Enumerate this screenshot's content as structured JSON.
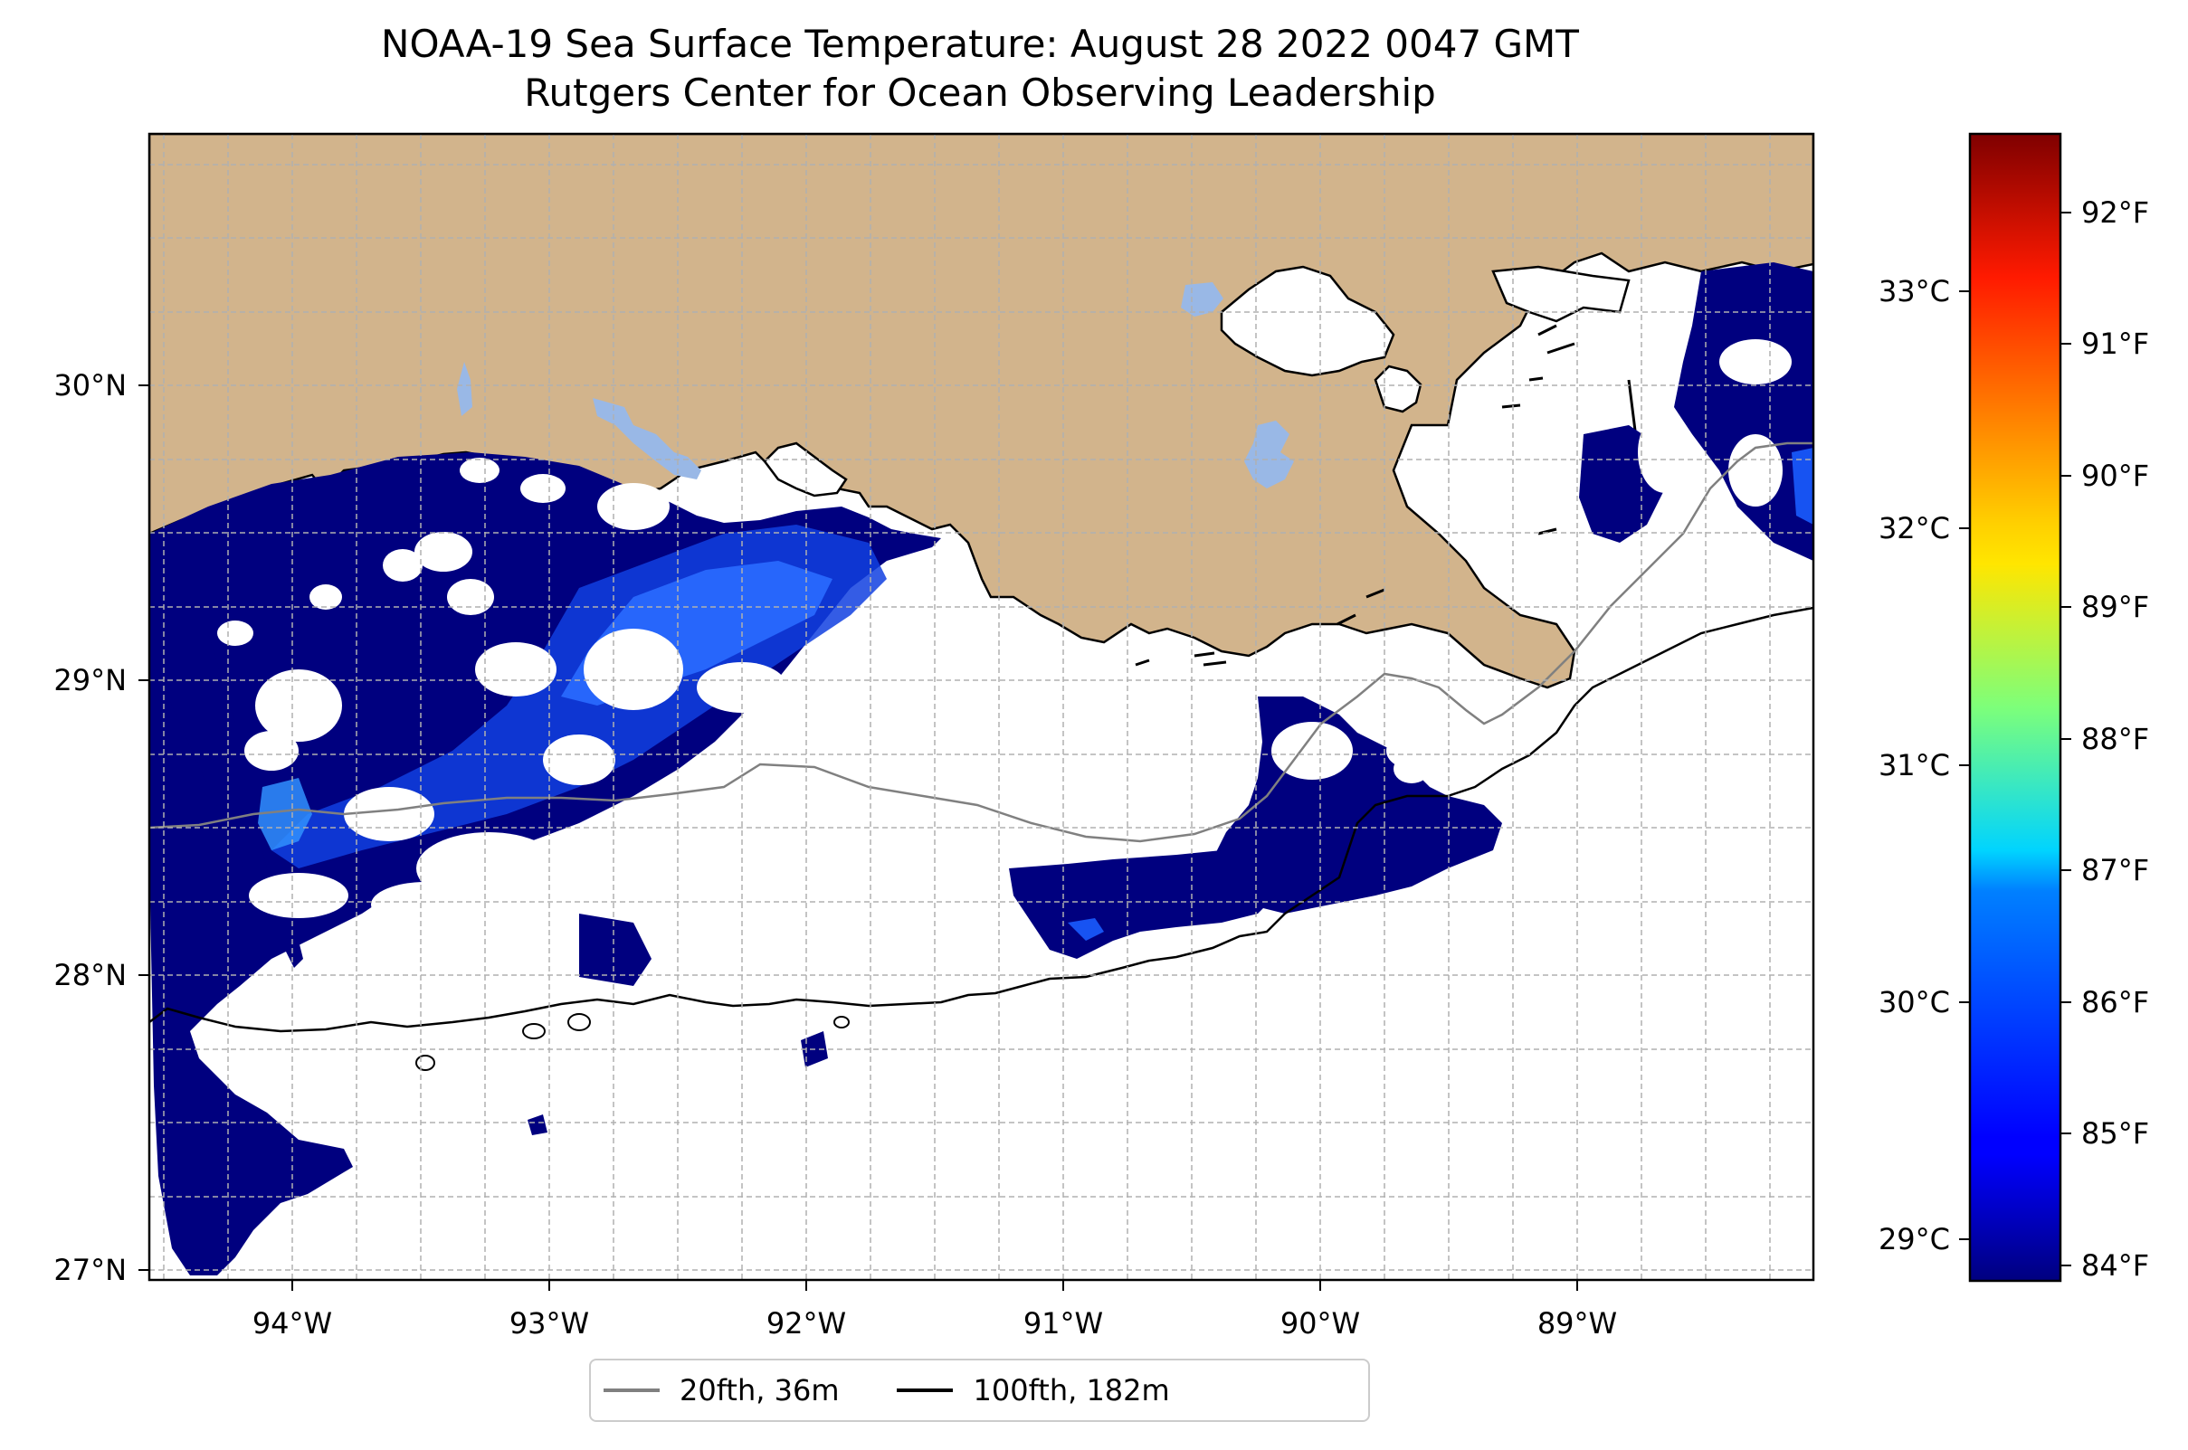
{
  "title": {
    "line1": "NOAA-19 Sea Surface Temperature: August 28 2022 0047 GMT",
    "line2": "Rutgers Center for Ocean Observing Leadership"
  },
  "map": {
    "lon_range": [
      -94.55,
      -88.2
    ],
    "lat_range": [
      26.93,
      30.83
    ],
    "lon_ticks": [
      "94°W",
      "93°W",
      "92°W",
      "91°W",
      "90°W",
      "89°W"
    ],
    "lat_ticks": [
      "30°N",
      "29°N",
      "28°N",
      "27°N"
    ],
    "gridlines": true,
    "land_color": "#d2b48c",
    "lake_color": "#99b8e6",
    "sst_color": "#00007f",
    "warm_color": "#0a5aff",
    "contours": [
      {
        "label": "20fth, 36m",
        "color": "#808080"
      },
      {
        "label": "100fth, 182m",
        "color": "#000000"
      }
    ]
  },
  "colorbar": {
    "colormap": "jet",
    "celsius_labels": [
      "33°C",
      "32°C",
      "31°C",
      "30°C",
      "29°C"
    ],
    "fahrenheit_labels": [
      "92°F",
      "91°F",
      "90°F",
      "89°F",
      "88°F",
      "87°F",
      "86°F",
      "85°F",
      "84°F"
    ]
  },
  "legend": {
    "position": "bottom-center",
    "items": [
      {
        "label": "20fth, 36m",
        "color": "#808080"
      },
      {
        "label": "100fth, 182m",
        "color": "#000000"
      }
    ]
  }
}
